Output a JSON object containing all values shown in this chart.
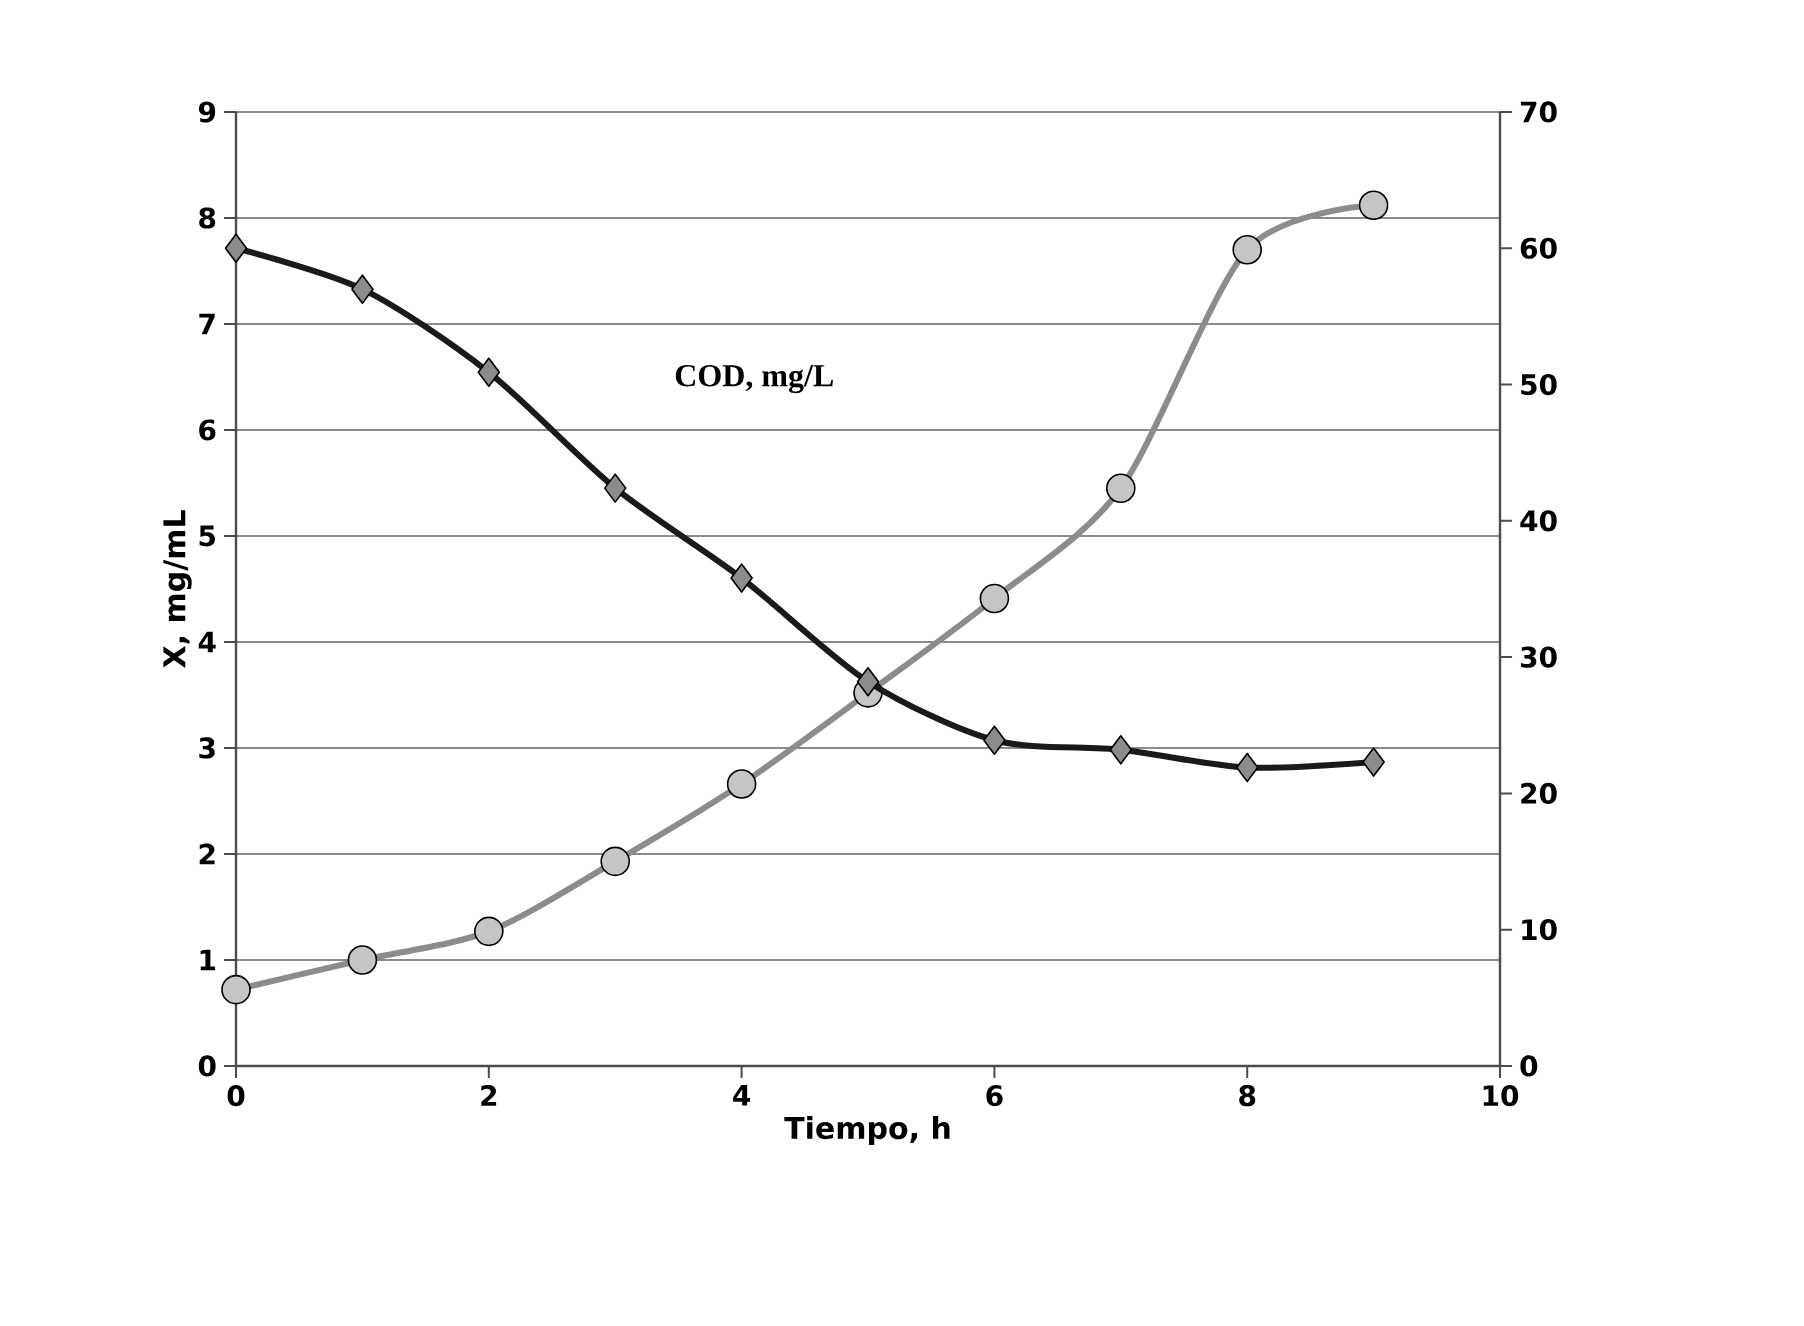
{
  "chart_data": {
    "type": "line",
    "xlabel": "Tiempo, h",
    "ylabel": "X, mg/mL",
    "x": [
      0,
      1,
      2,
      3,
      4,
      5,
      6,
      7,
      8,
      9
    ],
    "xlim": [
      0,
      10
    ],
    "xticks": [
      0,
      2,
      4,
      6,
      8,
      10
    ],
    "ylim": [
      0,
      9
    ],
    "yticks": [
      0,
      1,
      2,
      3,
      4,
      5,
      6,
      7,
      8,
      9
    ],
    "y2lim": [
      0,
      70
    ],
    "y2ticks": [
      0,
      10,
      20,
      30,
      40,
      50,
      60,
      70
    ],
    "grid": "y",
    "legend": false,
    "series": [
      {
        "color": "#8c8c8c",
        "marker": "circle",
        "values": [
          0.72,
          1.0,
          1.27,
          1.93,
          2.66,
          3.52,
          4.41,
          5.45,
          7.7,
          8.12
        ]
      },
      {
        "name": "COD, mg/L",
        "axis": "y2",
        "color": "#1a1a1a",
        "marker": "diamond",
        "values": [
          60.0,
          57.0,
          50.9,
          42.4,
          35.8,
          28.2,
          23.9,
          23.2,
          21.9,
          22.3
        ]
      }
    ]
  }
}
